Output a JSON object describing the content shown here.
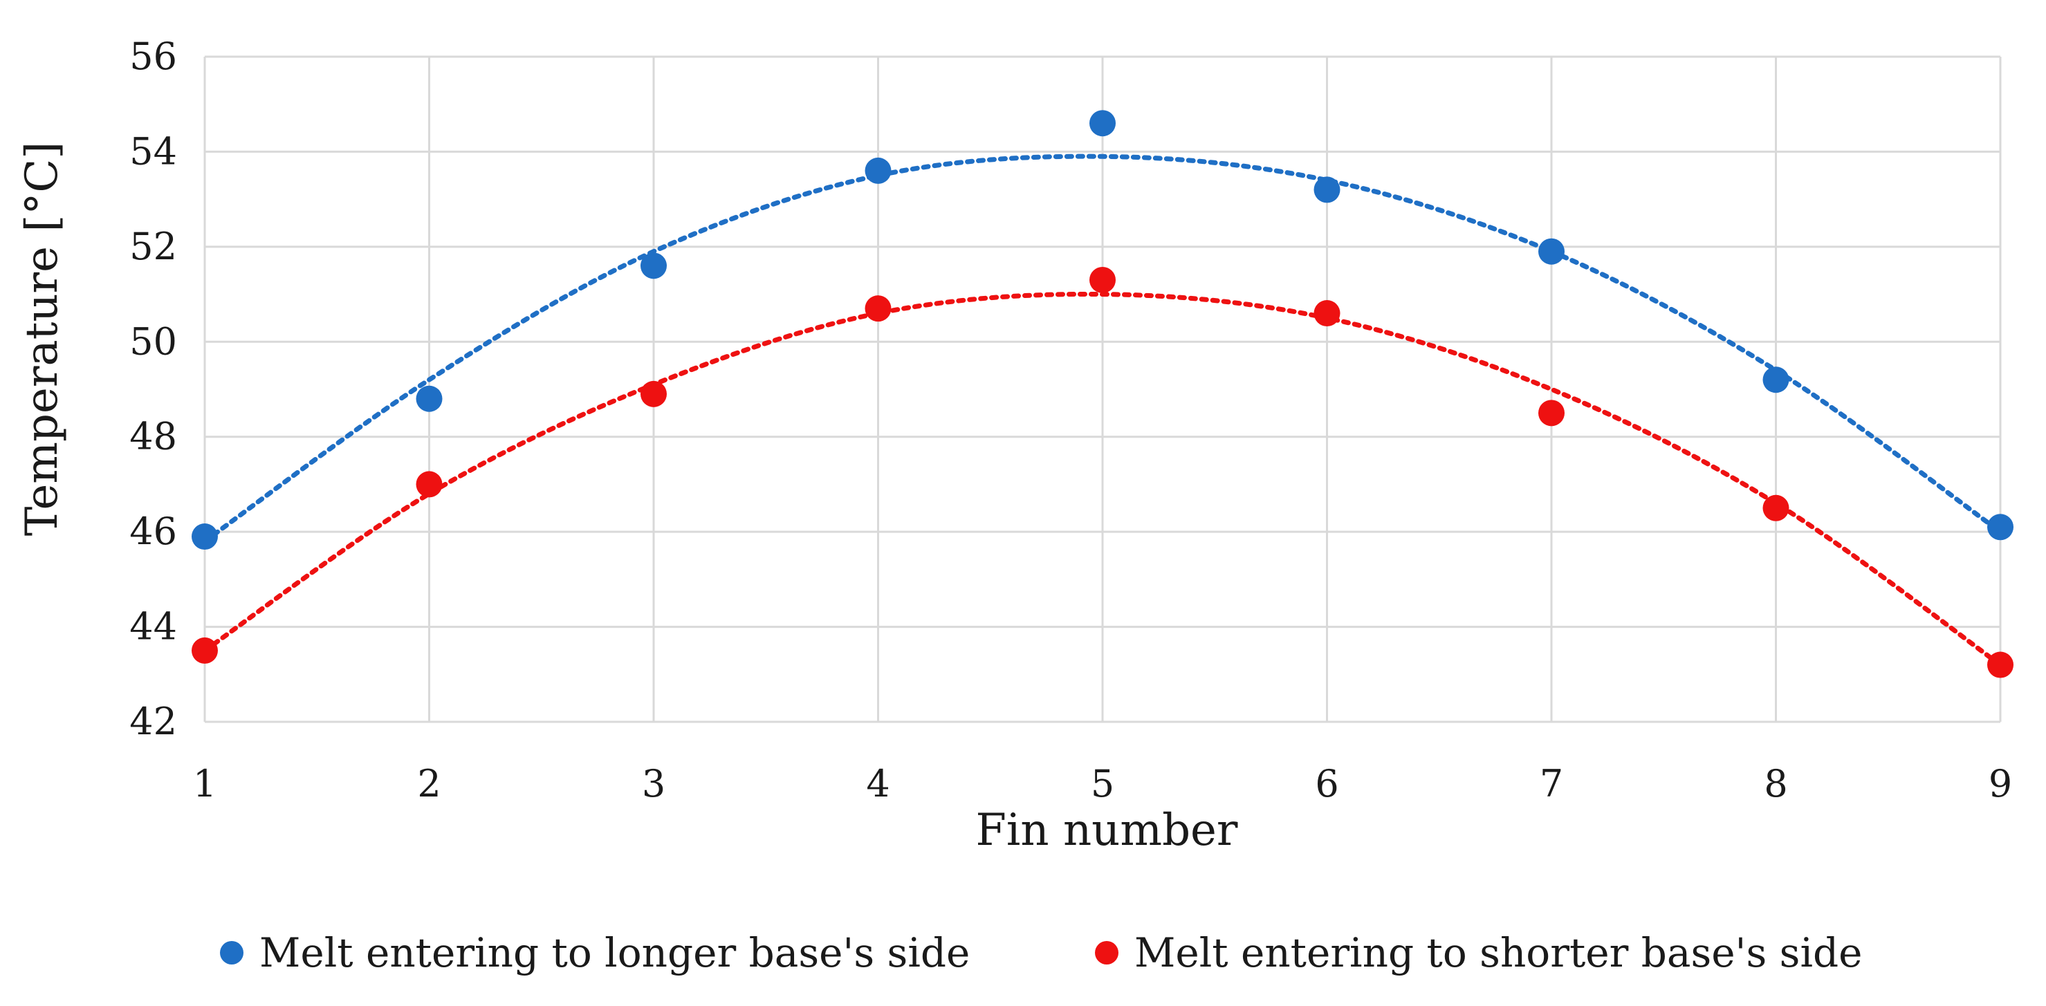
{
  "chart_data": {
    "type": "scatter",
    "title": "",
    "xlabel": "Fin number",
    "ylabel": "Temperature [°C]",
    "x": [
      1,
      2,
      3,
      4,
      5,
      6,
      7,
      8,
      9
    ],
    "xlim": [
      1,
      9
    ],
    "ylim": [
      42,
      56
    ],
    "x_ticks": [
      "1",
      "2",
      "3",
      "4",
      "5",
      "6",
      "7",
      "8",
      "9"
    ],
    "y_ticks": [
      "42",
      "44",
      "46",
      "48",
      "50",
      "52",
      "54",
      "56"
    ],
    "grid": true,
    "legend_position": "bottom",
    "trendline": "polynomial, dotted",
    "series": [
      {
        "name": "Melt entering to longer base's side",
        "color": "#1f6fc5",
        "values": [
          45.9,
          48.8,
          51.6,
          53.6,
          54.6,
          53.2,
          51.9,
          49.2,
          46.1
        ],
        "trend": [
          45.8,
          49.2,
          51.9,
          53.5,
          53.9,
          53.4,
          51.9,
          49.4,
          46.0
        ]
      },
      {
        "name": "Melt entering to shorter base's side",
        "color": "#ee1111",
        "values": [
          43.5,
          47.0,
          48.9,
          50.7,
          51.3,
          50.6,
          48.5,
          46.5,
          43.2
        ],
        "trend": [
          43.5,
          46.8,
          49.1,
          50.6,
          51.0,
          50.5,
          49.0,
          46.6,
          43.2
        ]
      }
    ]
  }
}
